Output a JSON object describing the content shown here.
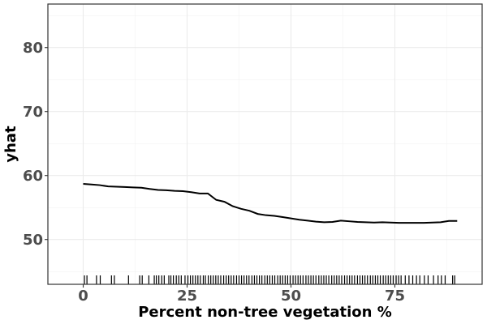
{
  "chart_data": {
    "type": "line",
    "xlabel": "Percent non-tree vegetation %",
    "ylabel": "yhat",
    "xlim": [
      -8.5,
      96
    ],
    "ylim": [
      43,
      86.8
    ],
    "x_ticks": [
      0,
      25,
      50,
      75
    ],
    "y_ticks": [
      50,
      60,
      70,
      80
    ],
    "x_minor_ticks": [
      12.5,
      37.5,
      62.5,
      87.5
    ],
    "y_minor_ticks": [
      45,
      55,
      65,
      75,
      85
    ],
    "grid": true,
    "legend": "none",
    "series": [
      {
        "x": [
          0,
          2,
          4,
          6,
          8,
          10,
          12,
          14,
          16,
          18,
          20,
          22,
          24,
          26,
          28,
          30,
          32,
          34,
          36,
          38,
          40,
          42,
          44,
          46,
          48,
          50,
          52,
          54,
          56,
          58,
          60,
          62,
          64,
          66,
          68,
          70,
          72,
          74,
          76,
          78,
          80,
          82,
          84,
          86,
          88,
          90
        ],
        "y": [
          58.7,
          58.6,
          58.5,
          58.3,
          58.25,
          58.2,
          58.15,
          58.1,
          57.9,
          57.75,
          57.7,
          57.6,
          57.55,
          57.4,
          57.2,
          57.2,
          56.2,
          55.9,
          55.2,
          54.8,
          54.5,
          54.0,
          53.8,
          53.7,
          53.5,
          53.3,
          53.1,
          52.95,
          52.8,
          52.7,
          52.75,
          52.95,
          52.85,
          52.75,
          52.7,
          52.65,
          52.7,
          52.65,
          52.6,
          52.6,
          52.6,
          52.6,
          52.65,
          52.7,
          52.9,
          52.9
        ],
        "color": "#000000"
      }
    ],
    "rug_x": [
      0.3,
      0.9,
      3.2,
      4.1,
      6.8,
      7.5,
      10.9,
      13.6,
      14.2,
      15.8,
      17.1,
      17.6,
      18.2,
      18.9,
      19.5,
      20.6,
      21.1,
      21.7,
      22.4,
      23.0,
      23.6,
      24.5,
      25.2,
      25.8,
      26.4,
      27.0,
      27.6,
      28.2,
      28.9,
      29.4,
      30.1,
      30.7,
      31.3,
      31.9,
      32.5,
      33.1,
      33.8,
      34.4,
      35.0,
      35.6,
      36.2,
      36.9,
      37.5,
      38.1,
      38.7,
      39.3,
      39.9,
      40.6,
      41.2,
      41.8,
      42.4,
      43.0,
      43.7,
      44.3,
      44.9,
      45.5,
      46.1,
      46.8,
      47.4,
      48.0,
      48.6,
      49.2,
      49.8,
      50.5,
      51.1,
      51.7,
      52.3,
      52.9,
      53.6,
      54.2,
      54.8,
      55.4,
      56.0,
      56.7,
      57.3,
      57.9,
      58.5,
      59.1,
      59.8,
      60.4,
      61.0,
      61.6,
      62.2,
      62.9,
      63.5,
      64.1,
      64.7,
      65.3,
      66.0,
      66.6,
      67.2,
      67.8,
      68.4,
      69.1,
      69.7,
      70.3,
      70.9,
      71.5,
      72.2,
      72.8,
      73.4,
      74.0,
      74.6,
      75.3,
      75.9,
      76.5,
      77.5,
      78.4,
      79.3,
      80.2,
      81.0,
      82.1,
      83.0,
      84.3,
      85.4,
      86.2,
      87.1,
      88.9,
      89.4
    ]
  }
}
